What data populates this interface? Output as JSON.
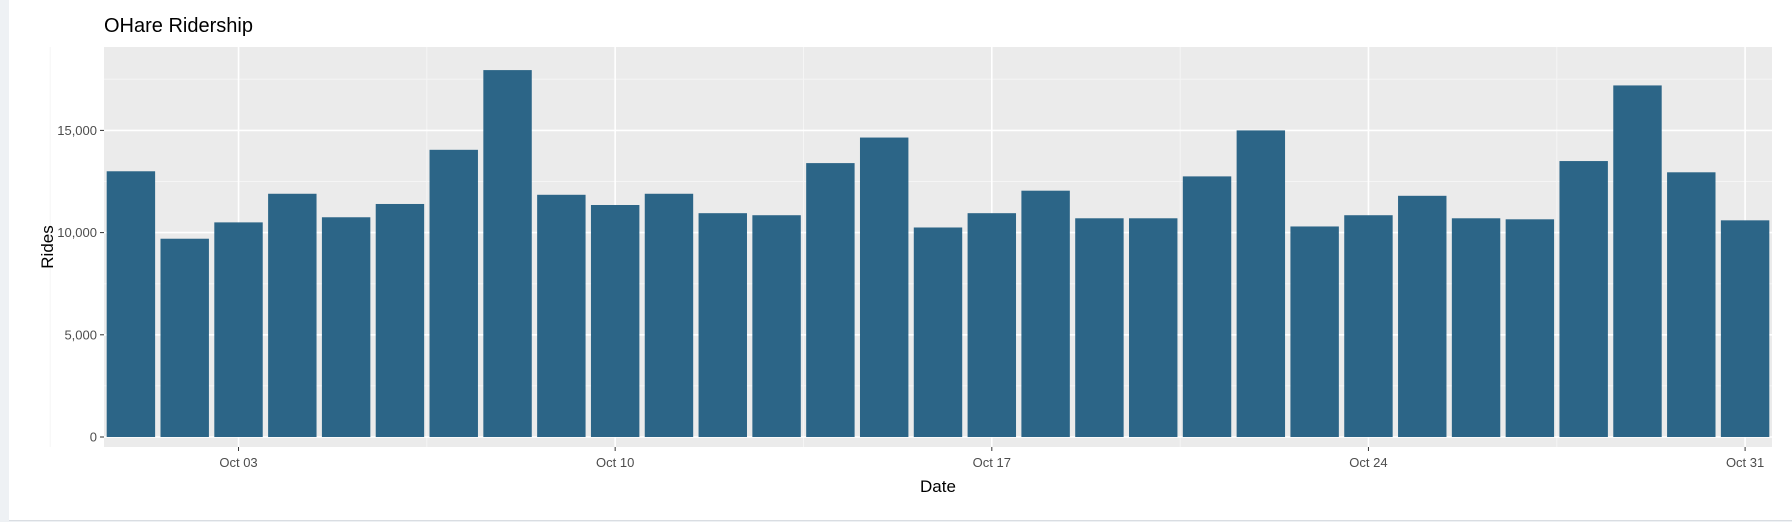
{
  "chart_data": {
    "type": "bar",
    "title": "OHare Ridership",
    "xlabel": "Date",
    "ylabel": "Rides",
    "ylim": [
      0,
      18000
    ],
    "yticks": [
      0,
      5000,
      10000,
      15000
    ],
    "ytick_labels": [
      "0",
      "5,000",
      "10,000",
      "15,000"
    ],
    "xticks": [
      "2019-10-03",
      "2019-10-10",
      "2019-10-17",
      "2019-10-24",
      "2019-10-31"
    ],
    "xtick_labels": [
      "Oct 03",
      "Oct 10",
      "Oct 17",
      "Oct 24",
      "Oct 31"
    ],
    "grid": true,
    "legend": "none",
    "bar_color": "#2c6587",
    "panel_color": "#ebebeb",
    "x": [
      "2019-10-01",
      "2019-10-02",
      "2019-10-03",
      "2019-10-04",
      "2019-10-05",
      "2019-10-06",
      "2019-10-07",
      "2019-10-08",
      "2019-10-09",
      "2019-10-10",
      "2019-10-11",
      "2019-10-12",
      "2019-10-13",
      "2019-10-14",
      "2019-10-15",
      "2019-10-16",
      "2019-10-17",
      "2019-10-18",
      "2019-10-19",
      "2019-10-20",
      "2019-10-21",
      "2019-10-22",
      "2019-10-23",
      "2019-10-24",
      "2019-10-25",
      "2019-10-26",
      "2019-10-27",
      "2019-10-28",
      "2019-10-29",
      "2019-10-30",
      "2019-10-31"
    ],
    "values": [
      13000,
      9700,
      10500,
      11900,
      10750,
      11400,
      14050,
      17950,
      11850,
      11350,
      11900,
      10950,
      10850,
      13400,
      14650,
      10250,
      10950,
      12050,
      10700,
      10700,
      12750,
      15000,
      10300,
      10850,
      11800,
      10700,
      10650,
      13500,
      17200,
      12950,
      10600
    ]
  }
}
